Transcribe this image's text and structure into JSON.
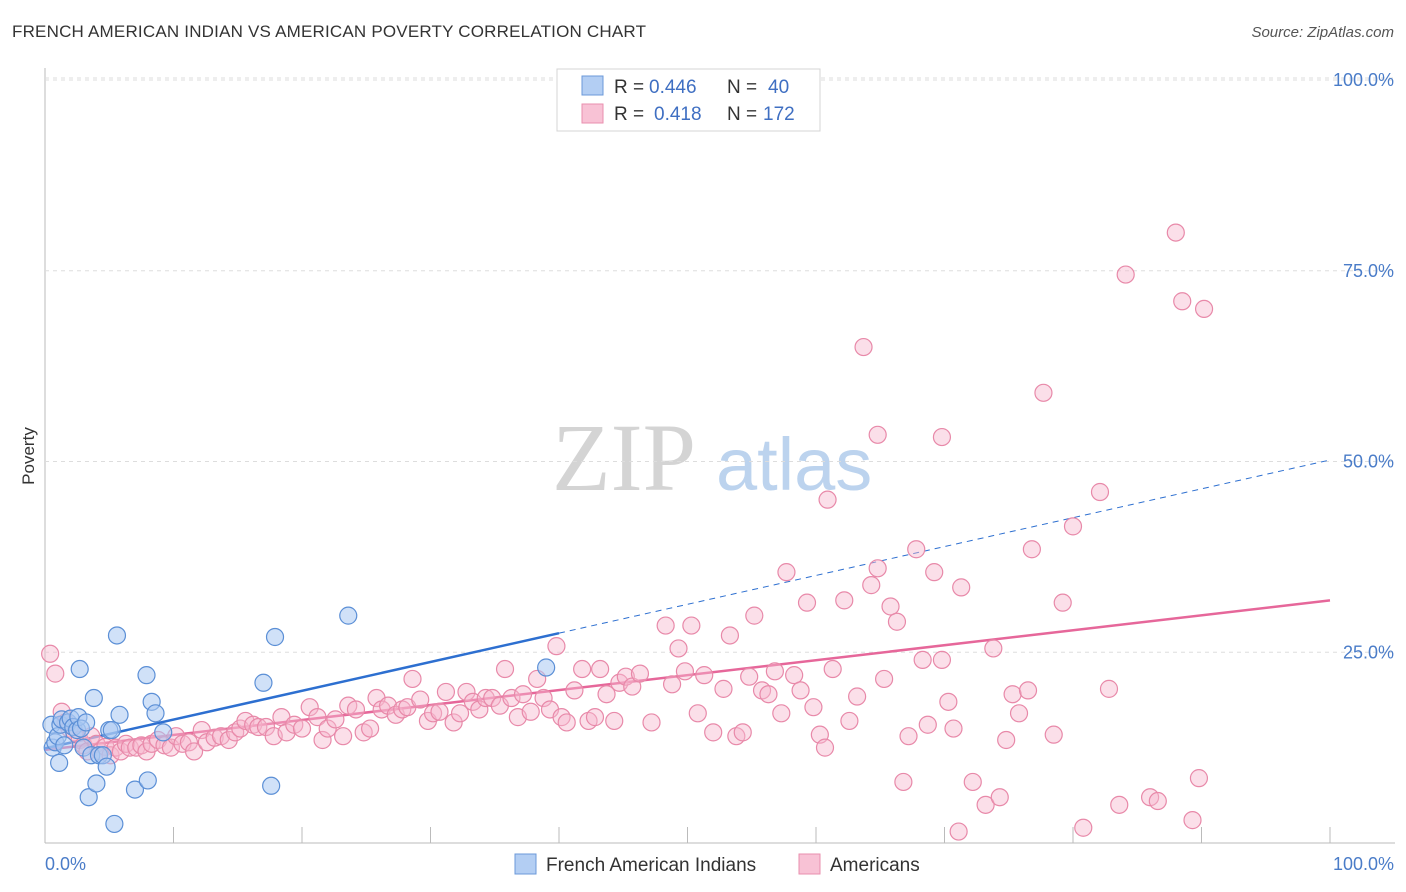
{
  "header": {
    "title": "FRENCH AMERICAN INDIAN VS AMERICAN POVERTY CORRELATION CHART",
    "source": "Source: ZipAtlas.com"
  },
  "watermark": {
    "zip": "ZIP",
    "atlas": "atlas"
  },
  "legend": {
    "rows": [
      {
        "r_label": "R =",
        "r_value": "0.446",
        "n_label": "N =",
        "n_value": "40"
      },
      {
        "r_label": "R =",
        "r_value": "0.418",
        "n_label": "N =",
        "n_value": "172"
      }
    ]
  },
  "bottom_legend": {
    "series1": "French American Indians",
    "series2": "Americans"
  },
  "colors": {
    "blue_fill": "#a9c8f2",
    "blue_stroke": "#5b8fd6",
    "blue_line": "#2d6fd0",
    "pink_fill": "#f6b9cf",
    "pink_stroke": "#e889a9",
    "pink_line": "#e6679a",
    "tick_text": "#4a7cc8",
    "grid": "#dddddd"
  },
  "chart_data": {
    "type": "scatter",
    "title": "FRENCH AMERICAN INDIAN VS AMERICAN POVERTY CORRELATION CHART",
    "ylabel": "Poverty",
    "xlabel": "",
    "xlim": [
      0,
      100
    ],
    "ylim": [
      0,
      100
    ],
    "x_tick_labels": [
      "0.0%",
      "100.0%"
    ],
    "y_tick_labels": [
      "25.0%",
      "50.0%",
      "75.0%",
      "100.0%"
    ],
    "y_ticks": [
      25,
      50,
      75,
      100
    ],
    "grid": "horizontal dashed",
    "legend_placement": "top-center",
    "series": [
      {
        "name": "French American Indians",
        "r": 0.446,
        "n": 40,
        "trend": {
          "x0": 0,
          "y0": 12.4,
          "x1": 40,
          "y1": 27.5,
          "extended_to_x": 100,
          "extended_y": 50.2
        },
        "points": [
          [
            0.5,
            15.5
          ],
          [
            0.6,
            12.5
          ],
          [
            0.8,
            13.2
          ],
          [
            1.0,
            14.0
          ],
          [
            1.2,
            15.5
          ],
          [
            1.3,
            16.2
          ],
          [
            1.5,
            12.8
          ],
          [
            1.8,
            15.8
          ],
          [
            2.0,
            16.3
          ],
          [
            2.2,
            15.2
          ],
          [
            2.5,
            14.8
          ],
          [
            2.6,
            16.5
          ],
          [
            2.8,
            15.0
          ],
          [
            3.0,
            12.5
          ],
          [
            3.2,
            15.8
          ],
          [
            1.1,
            10.5
          ],
          [
            2.7,
            22.8
          ],
          [
            3.6,
            11.5
          ],
          [
            3.8,
            19.0
          ],
          [
            4.2,
            11.5
          ],
          [
            4.5,
            11.5
          ],
          [
            4.8,
            10.0
          ],
          [
            5.0,
            14.8
          ],
          [
            5.2,
            14.8
          ],
          [
            5.8,
            16.8
          ],
          [
            5.6,
            27.2
          ],
          [
            3.4,
            6.0
          ],
          [
            4.0,
            7.8
          ],
          [
            7.0,
            7.0
          ],
          [
            8.0,
            8.2
          ],
          [
            7.9,
            22.0
          ],
          [
            8.3,
            18.5
          ],
          [
            8.6,
            17.0
          ],
          [
            9.2,
            14.5
          ],
          [
            5.4,
            2.5
          ],
          [
            17.0,
            21.0
          ],
          [
            17.6,
            7.5
          ],
          [
            17.9,
            27.0
          ],
          [
            23.6,
            29.8
          ],
          [
            39.0,
            23.0
          ]
        ]
      },
      {
        "name": "Americans",
        "r": 0.418,
        "n": 172,
        "trend": {
          "x0": 0,
          "y0": 12.2,
          "x1": 100,
          "y1": 31.8
        },
        "points": [
          [
            0.4,
            24.8
          ],
          [
            0.8,
            22.2
          ],
          [
            1.3,
            17.2
          ],
          [
            1.6,
            15.8
          ],
          [
            1.9,
            15.0
          ],
          [
            2.3,
            14.5
          ],
          [
            2.7,
            13.5
          ],
          [
            3.0,
            12.8
          ],
          [
            3.3,
            12.0
          ],
          [
            3.6,
            14.0
          ],
          [
            4.0,
            13.0
          ],
          [
            4.3,
            12.0
          ],
          [
            4.7,
            12.6
          ],
          [
            5.1,
            11.5
          ],
          [
            5.5,
            12.5
          ],
          [
            5.9,
            12.0
          ],
          [
            6.3,
            13.0
          ],
          [
            6.6,
            12.5
          ],
          [
            7.1,
            12.5
          ],
          [
            7.5,
            12.8
          ],
          [
            7.9,
            12.0
          ],
          [
            8.3,
            13.0
          ],
          [
            8.8,
            13.5
          ],
          [
            9.3,
            12.8
          ],
          [
            9.8,
            12.5
          ],
          [
            10.2,
            14.0
          ],
          [
            10.7,
            13.0
          ],
          [
            11.2,
            13.2
          ],
          [
            11.6,
            12.0
          ],
          [
            12.2,
            14.8
          ],
          [
            12.6,
            13.2
          ],
          [
            13.2,
            13.8
          ],
          [
            13.7,
            14.0
          ],
          [
            14.3,
            13.5
          ],
          [
            14.8,
            14.5
          ],
          [
            15.2,
            15.0
          ],
          [
            15.6,
            16.0
          ],
          [
            16.2,
            15.5
          ],
          [
            16.6,
            15.2
          ],
          [
            17.2,
            15.2
          ],
          [
            17.8,
            14.0
          ],
          [
            18.4,
            16.5
          ],
          [
            18.8,
            14.5
          ],
          [
            19.4,
            15.5
          ],
          [
            20.0,
            15.0
          ],
          [
            20.6,
            17.8
          ],
          [
            21.2,
            16.5
          ],
          [
            21.6,
            13.5
          ],
          [
            22.0,
            15.0
          ],
          [
            22.6,
            16.2
          ],
          [
            23.2,
            14.0
          ],
          [
            23.6,
            18.0
          ],
          [
            24.2,
            17.5
          ],
          [
            24.8,
            14.5
          ],
          [
            25.3,
            15.0
          ],
          [
            25.8,
            19.0
          ],
          [
            26.2,
            17.5
          ],
          [
            26.7,
            18.0
          ],
          [
            27.3,
            16.8
          ],
          [
            27.8,
            17.5
          ],
          [
            28.2,
            17.8
          ],
          [
            28.6,
            21.5
          ],
          [
            29.2,
            18.8
          ],
          [
            29.8,
            16.0
          ],
          [
            30.2,
            17.0
          ],
          [
            30.7,
            17.2
          ],
          [
            31.2,
            19.8
          ],
          [
            31.8,
            15.8
          ],
          [
            32.3,
            17.0
          ],
          [
            32.8,
            19.8
          ],
          [
            33.3,
            18.5
          ],
          [
            33.8,
            17.5
          ],
          [
            34.3,
            19.0
          ],
          [
            34.8,
            19.0
          ],
          [
            35.4,
            18.0
          ],
          [
            35.8,
            22.8
          ],
          [
            36.3,
            19.0
          ],
          [
            36.8,
            16.5
          ],
          [
            37.2,
            19.5
          ],
          [
            37.8,
            17.2
          ],
          [
            38.3,
            21.5
          ],
          [
            38.8,
            19.0
          ],
          [
            39.3,
            17.5
          ],
          [
            39.8,
            25.8
          ],
          [
            40.2,
            16.5
          ],
          [
            40.6,
            15.8
          ],
          [
            41.2,
            20.0
          ],
          [
            41.8,
            22.8
          ],
          [
            42.3,
            16.0
          ],
          [
            42.8,
            16.5
          ],
          [
            43.2,
            22.8
          ],
          [
            43.7,
            19.5
          ],
          [
            44.3,
            16.0
          ],
          [
            44.7,
            21.0
          ],
          [
            45.2,
            21.8
          ],
          [
            45.7,
            20.5
          ],
          [
            46.3,
            22.2
          ],
          [
            47.2,
            15.8
          ],
          [
            48.3,
            28.5
          ],
          [
            48.8,
            20.8
          ],
          [
            49.3,
            25.5
          ],
          [
            49.8,
            22.5
          ],
          [
            50.3,
            28.5
          ],
          [
            50.8,
            17.0
          ],
          [
            51.3,
            22.0
          ],
          [
            52.0,
            14.5
          ],
          [
            52.8,
            20.2
          ],
          [
            53.3,
            27.2
          ],
          [
            53.8,
            14.0
          ],
          [
            54.3,
            14.5
          ],
          [
            54.8,
            21.8
          ],
          [
            55.2,
            29.8
          ],
          [
            55.8,
            20.0
          ],
          [
            56.3,
            19.5
          ],
          [
            56.8,
            22.5
          ],
          [
            57.3,
            17.0
          ],
          [
            57.7,
            35.5
          ],
          [
            58.3,
            22.0
          ],
          [
            58.8,
            20.0
          ],
          [
            59.3,
            31.5
          ],
          [
            59.8,
            17.8
          ],
          [
            60.3,
            14.2
          ],
          [
            60.7,
            12.5
          ],
          [
            61.3,
            22.8
          ],
          [
            62.2,
            31.8
          ],
          [
            62.6,
            16.0
          ],
          [
            63.2,
            19.2
          ],
          [
            63.7,
            65.0
          ],
          [
            64.3,
            33.8
          ],
          [
            64.8,
            36.0
          ],
          [
            65.3,
            21.5
          ],
          [
            65.8,
            31.0
          ],
          [
            66.3,
            29.0
          ],
          [
            66.8,
            8.0
          ],
          [
            67.2,
            14.0
          ],
          [
            67.8,
            38.5
          ],
          [
            68.3,
            24.0
          ],
          [
            68.7,
            15.5
          ],
          [
            69.2,
            35.5
          ],
          [
            69.8,
            24.0
          ],
          [
            70.3,
            18.5
          ],
          [
            70.7,
            15.0
          ],
          [
            71.3,
            33.5
          ],
          [
            72.2,
            8.0
          ],
          [
            73.2,
            5.0
          ],
          [
            74.3,
            6.0
          ],
          [
            74.8,
            13.5
          ],
          [
            75.3,
            19.5
          ],
          [
            75.8,
            17.0
          ],
          [
            76.8,
            38.5
          ],
          [
            77.7,
            59.0
          ],
          [
            78.5,
            14.2
          ],
          [
            79.2,
            31.5
          ],
          [
            80.0,
            41.5
          ],
          [
            80.8,
            2.0
          ],
          [
            82.1,
            46.0
          ],
          [
            82.8,
            20.2
          ],
          [
            83.6,
            5.0
          ],
          [
            84.1,
            74.5
          ],
          [
            86.0,
            6.0
          ],
          [
            86.6,
            5.5
          ],
          [
            88.0,
            80.0
          ],
          [
            88.5,
            71.0
          ],
          [
            89.3,
            3.0
          ],
          [
            89.8,
            8.5
          ],
          [
            90.2,
            70.0
          ],
          [
            71.1,
            1.5
          ],
          [
            64.8,
            53.5
          ],
          [
            69.8,
            53.2
          ],
          [
            60.9,
            45.0
          ],
          [
            73.8,
            25.5
          ],
          [
            76.5,
            20.0
          ]
        ]
      }
    ]
  }
}
